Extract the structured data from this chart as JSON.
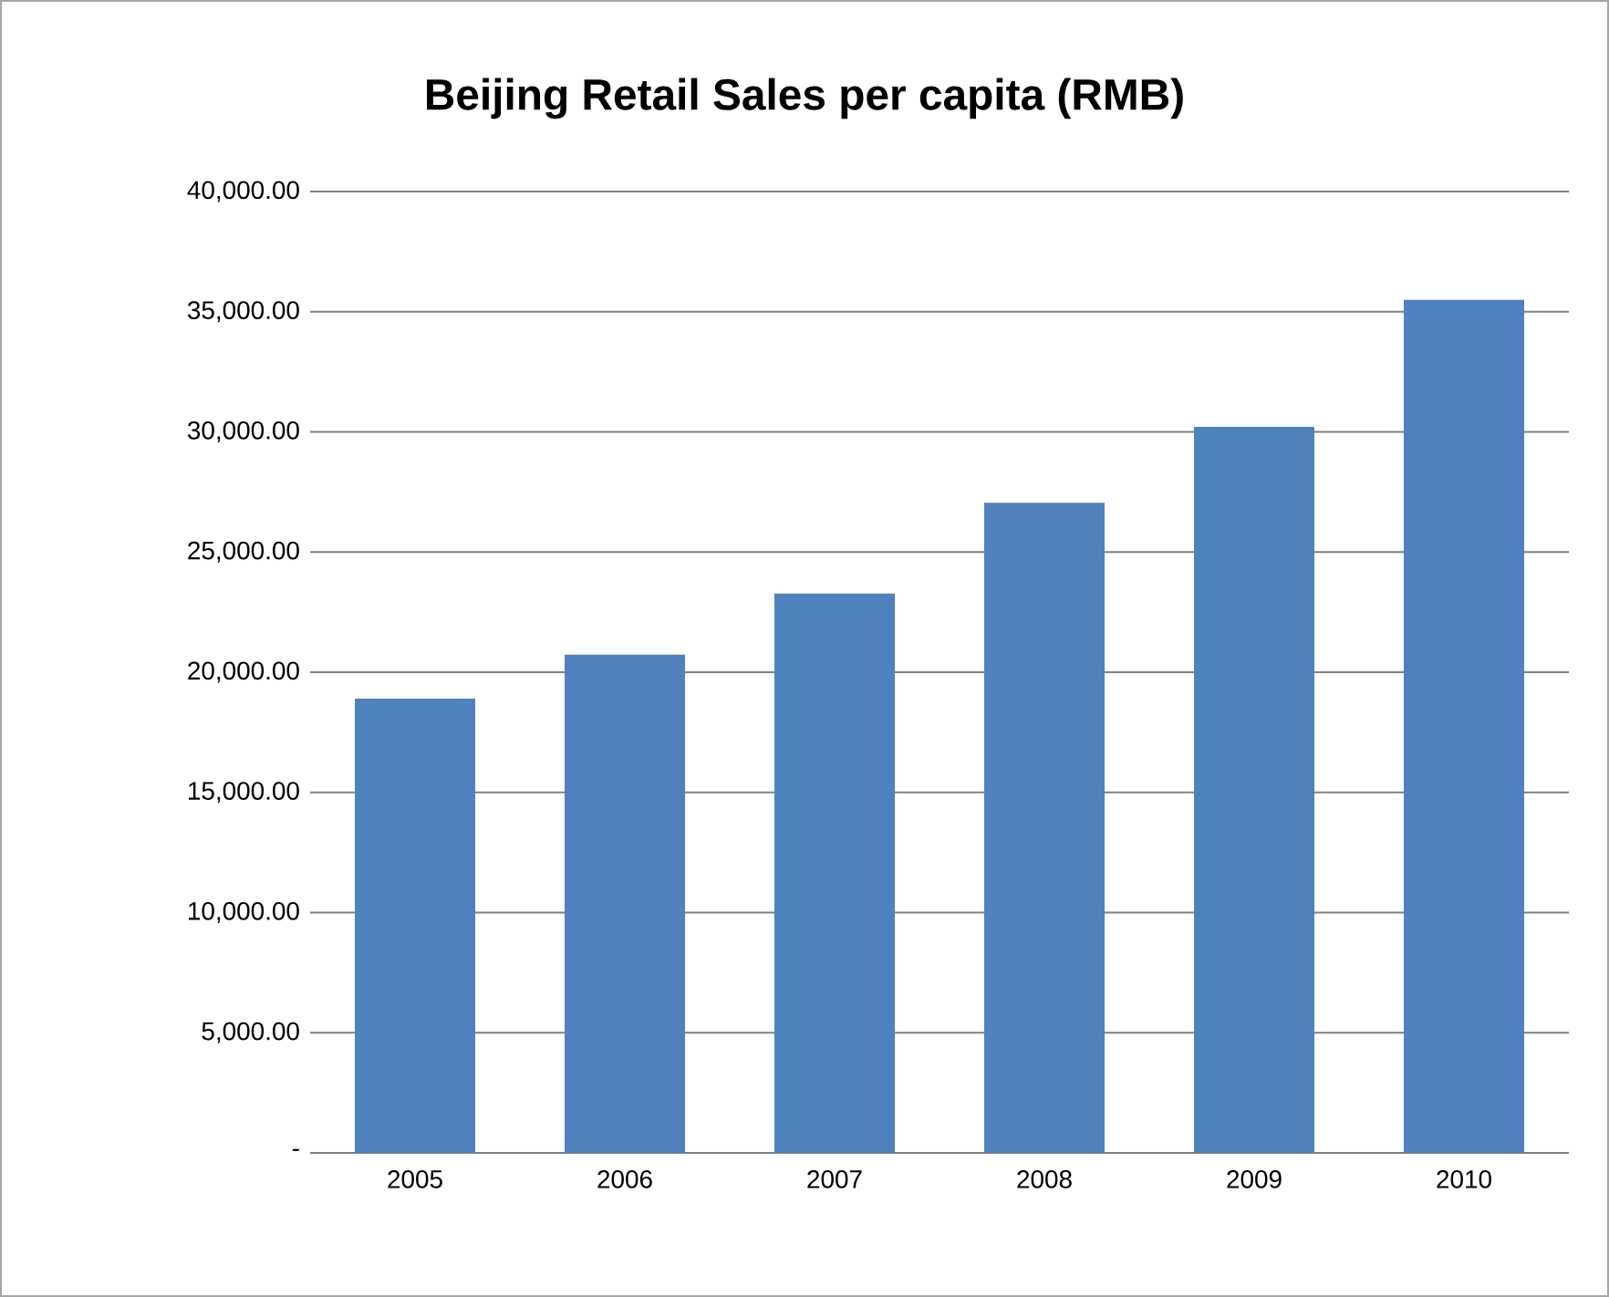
{
  "chart_data": {
    "type": "bar",
    "title": "Beijing Retail Sales per capita (RMB)",
    "categories": [
      "2005",
      "2006",
      "2007",
      "2008",
      "2009",
      "2010"
    ],
    "values": [
      18900,
      20730,
      23270,
      27050,
      30210,
      35490
    ],
    "color": "#4f81bd",
    "ylim": [
      0,
      40000
    ],
    "yticks": [
      {
        "value": 0,
        "label": "-"
      },
      {
        "value": 5000,
        "label": "5,000.00"
      },
      {
        "value": 10000,
        "label": "10,000.00"
      },
      {
        "value": 15000,
        "label": "15,000.00"
      },
      {
        "value": 20000,
        "label": "20,000.00"
      },
      {
        "value": 25000,
        "label": "25,000.00"
      },
      {
        "value": 30000,
        "label": "30,000.00"
      },
      {
        "value": 35000,
        "label": "35,000.00"
      },
      {
        "value": 40000,
        "label": "40,000.00"
      }
    ],
    "grid": "y"
  }
}
